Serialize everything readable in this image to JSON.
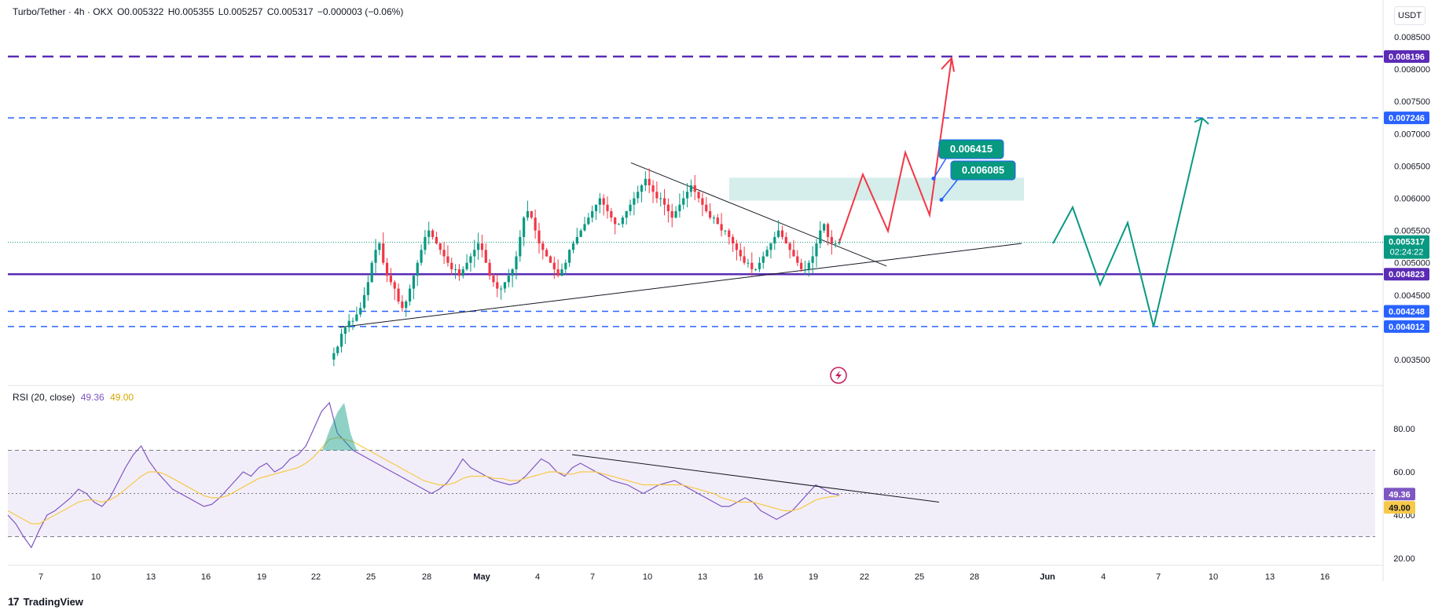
{
  "header": {
    "symbol": "Turbo/Tether · 4h · OKX",
    "open": "O0.005322",
    "high": "H0.005355",
    "low": "L0.005257",
    "close": "C0.005317",
    "change": "−0.000003 (−0.06%)"
  },
  "currency_button": "USDT",
  "rsi_header": {
    "label": "RSI (20, close)",
    "rsi_value": "49.36",
    "ma_value": "49.00"
  },
  "footer": {
    "brand": "TradingView",
    "logo_glyph": "17"
  },
  "colors": {
    "up": "#089981",
    "down": "#f23645",
    "level_blue": "#2962ff",
    "level_purple": "#5b2bb5",
    "rsi_line": "#7e57c2",
    "rsi_ma": "#f7c948",
    "bullish_path": "#f23645",
    "bearish_path": "#089981",
    "zone": "#b2dfdb"
  },
  "chart_data": [
    {
      "type": "candlestick",
      "title": "Turbo/Tether · 4h · OKX",
      "x_ticks": [
        "7",
        "10",
        "13",
        "16",
        "19",
        "22",
        "25",
        "28",
        "May",
        "4",
        "7",
        "10",
        "13",
        "16",
        "19",
        "22",
        "25",
        "28",
        "Jun",
        "4",
        "7",
        "10",
        "13",
        "16"
      ],
      "y_ticks": [
        "0.008500",
        "0.008000",
        "0.007500",
        "0.007000",
        "0.006500",
        "0.006000",
        "0.005500",
        "0.005000",
        "0.004500",
        "0.003500"
      ],
      "ylim": [
        0.0033,
        0.0088
      ],
      "current_price": {
        "value": "0.005317",
        "countdown": "02:24:22"
      },
      "horizontal_levels": [
        {
          "value": 0.008196,
          "label": "0.008196",
          "style": "dashed",
          "color": "#5b2bb5"
        },
        {
          "value": 0.007246,
          "label": "0.007246",
          "style": "dashed",
          "color": "#2962ff"
        },
        {
          "value": 0.004823,
          "label": "0.004823",
          "style": "solid",
          "color": "#5b2bb5"
        },
        {
          "value": 0.004248,
          "label": "0.004248",
          "style": "dashed",
          "color": "#2962ff"
        },
        {
          "value": 0.004012,
          "label": "0.004012",
          "style": "dashed",
          "color": "#2962ff"
        }
      ],
      "annotations": [
        "0.006415",
        "0.006085"
      ],
      "approx_price_path": [
        0.0035,
        0.0036,
        0.0037,
        0.0039,
        0.004,
        0.0041,
        0.0041,
        0.0042,
        0.0043,
        0.0045,
        0.0047,
        0.005,
        0.0052,
        0.0053,
        0.005,
        0.0048,
        0.0047,
        0.0046,
        0.0044,
        0.0043,
        0.0044,
        0.0046,
        0.0048,
        0.005,
        0.0052,
        0.0054,
        0.0055,
        0.0054,
        0.0053,
        0.0052,
        0.0051,
        0.005,
        0.0049,
        0.0049,
        0.0048,
        0.0049,
        0.005,
        0.0051,
        0.0052,
        0.0053,
        0.0052,
        0.005,
        0.0048,
        0.0047,
        0.0046,
        0.0046,
        0.0047,
        0.0048,
        0.0049,
        0.0051,
        0.0054,
        0.0057,
        0.0058,
        0.0057,
        0.0055,
        0.0053,
        0.0052,
        0.0051,
        0.005,
        0.0049,
        0.0048,
        0.0049,
        0.005,
        0.0052,
        0.0053,
        0.0054,
        0.0055,
        0.0056,
        0.0057,
        0.0058,
        0.0059,
        0.006,
        0.0059,
        0.0058,
        0.0057,
        0.0056,
        0.0056,
        0.0057,
        0.0058,
        0.0059,
        0.006,
        0.0061,
        0.0062,
        0.0063,
        0.0062,
        0.0061,
        0.006,
        0.006,
        0.0059,
        0.0058,
        0.0057,
        0.0058,
        0.0059,
        0.006,
        0.0061,
        0.0062,
        0.0061,
        0.006,
        0.0059,
        0.0058,
        0.0057,
        0.0057,
        0.0056,
        0.0055,
        0.0055,
        0.0054,
        0.0053,
        0.0052,
        0.0051,
        0.005,
        0.005,
        0.0049,
        0.0049,
        0.005,
        0.0051,
        0.0052,
        0.0053,
        0.0054,
        0.0055,
        0.0054,
        0.0053,
        0.0052,
        0.0051,
        0.005,
        0.0049,
        0.0049,
        0.005,
        0.0051,
        0.0053,
        0.0055,
        0.0056,
        0.0054,
        0.0053,
        0.0053,
        0.005317
      ]
    },
    {
      "type": "line",
      "title": "RSI (20, close)",
      "y_ticks": [
        "80.00",
        "60.00",
        "40.00",
        "20.00"
      ],
      "ylim": [
        16,
        90
      ],
      "bands": [
        70,
        50,
        30
      ],
      "series": [
        {
          "name": "RSI",
          "last": 49.36,
          "values": [
            40,
            36,
            30,
            25,
            33,
            40,
            42,
            45,
            48,
            52,
            50,
            46,
            44,
            48,
            55,
            62,
            68,
            72,
            65,
            60,
            56,
            52,
            50,
            48,
            46,
            44,
            45,
            48,
            52,
            56,
            60,
            58,
            62,
            64,
            60,
            62,
            66,
            68,
            72,
            80,
            88,
            92,
            78,
            74,
            70,
            68,
            66,
            64,
            62,
            60,
            58,
            56,
            54,
            52,
            50,
            52,
            55,
            60,
            66,
            62,
            60,
            58,
            56,
            55,
            54,
            55,
            58,
            62,
            66,
            64,
            60,
            58,
            62,
            64,
            62,
            60,
            58,
            56,
            55,
            54,
            52,
            50,
            52,
            54,
            55,
            56,
            54,
            52,
            50,
            48,
            46,
            44,
            44,
            46,
            48,
            46,
            42,
            40,
            38,
            40,
            42,
            46,
            50,
            54,
            52,
            50,
            49.36
          ]
        },
        {
          "name": "MA",
          "last": 49.0,
          "values": [
            42,
            40,
            38,
            36,
            36,
            38,
            40,
            42,
            44,
            46,
            47,
            47,
            46,
            47,
            49,
            52,
            55,
            58,
            60,
            60,
            59,
            57,
            55,
            53,
            51,
            49,
            48,
            48,
            49,
            51,
            53,
            55,
            57,
            58,
            59,
            60,
            61,
            62,
            64,
            67,
            71,
            75,
            76,
            75,
            74,
            72,
            70,
            68,
            66,
            64,
            62,
            60,
            58,
            56,
            55,
            54,
            54,
            55,
            57,
            58,
            58,
            58,
            57,
            57,
            56,
            56,
            57,
            58,
            59,
            60,
            60,
            59,
            59,
            60,
            60,
            60,
            59,
            58,
            57,
            56,
            55,
            54,
            54,
            54,
            54,
            54,
            54,
            53,
            52,
            51,
            50,
            48,
            47,
            46,
            46,
            46,
            45,
            44,
            43,
            42,
            42,
            43,
            45,
            47,
            48,
            48.5,
            49.0
          ]
        }
      ]
    }
  ]
}
